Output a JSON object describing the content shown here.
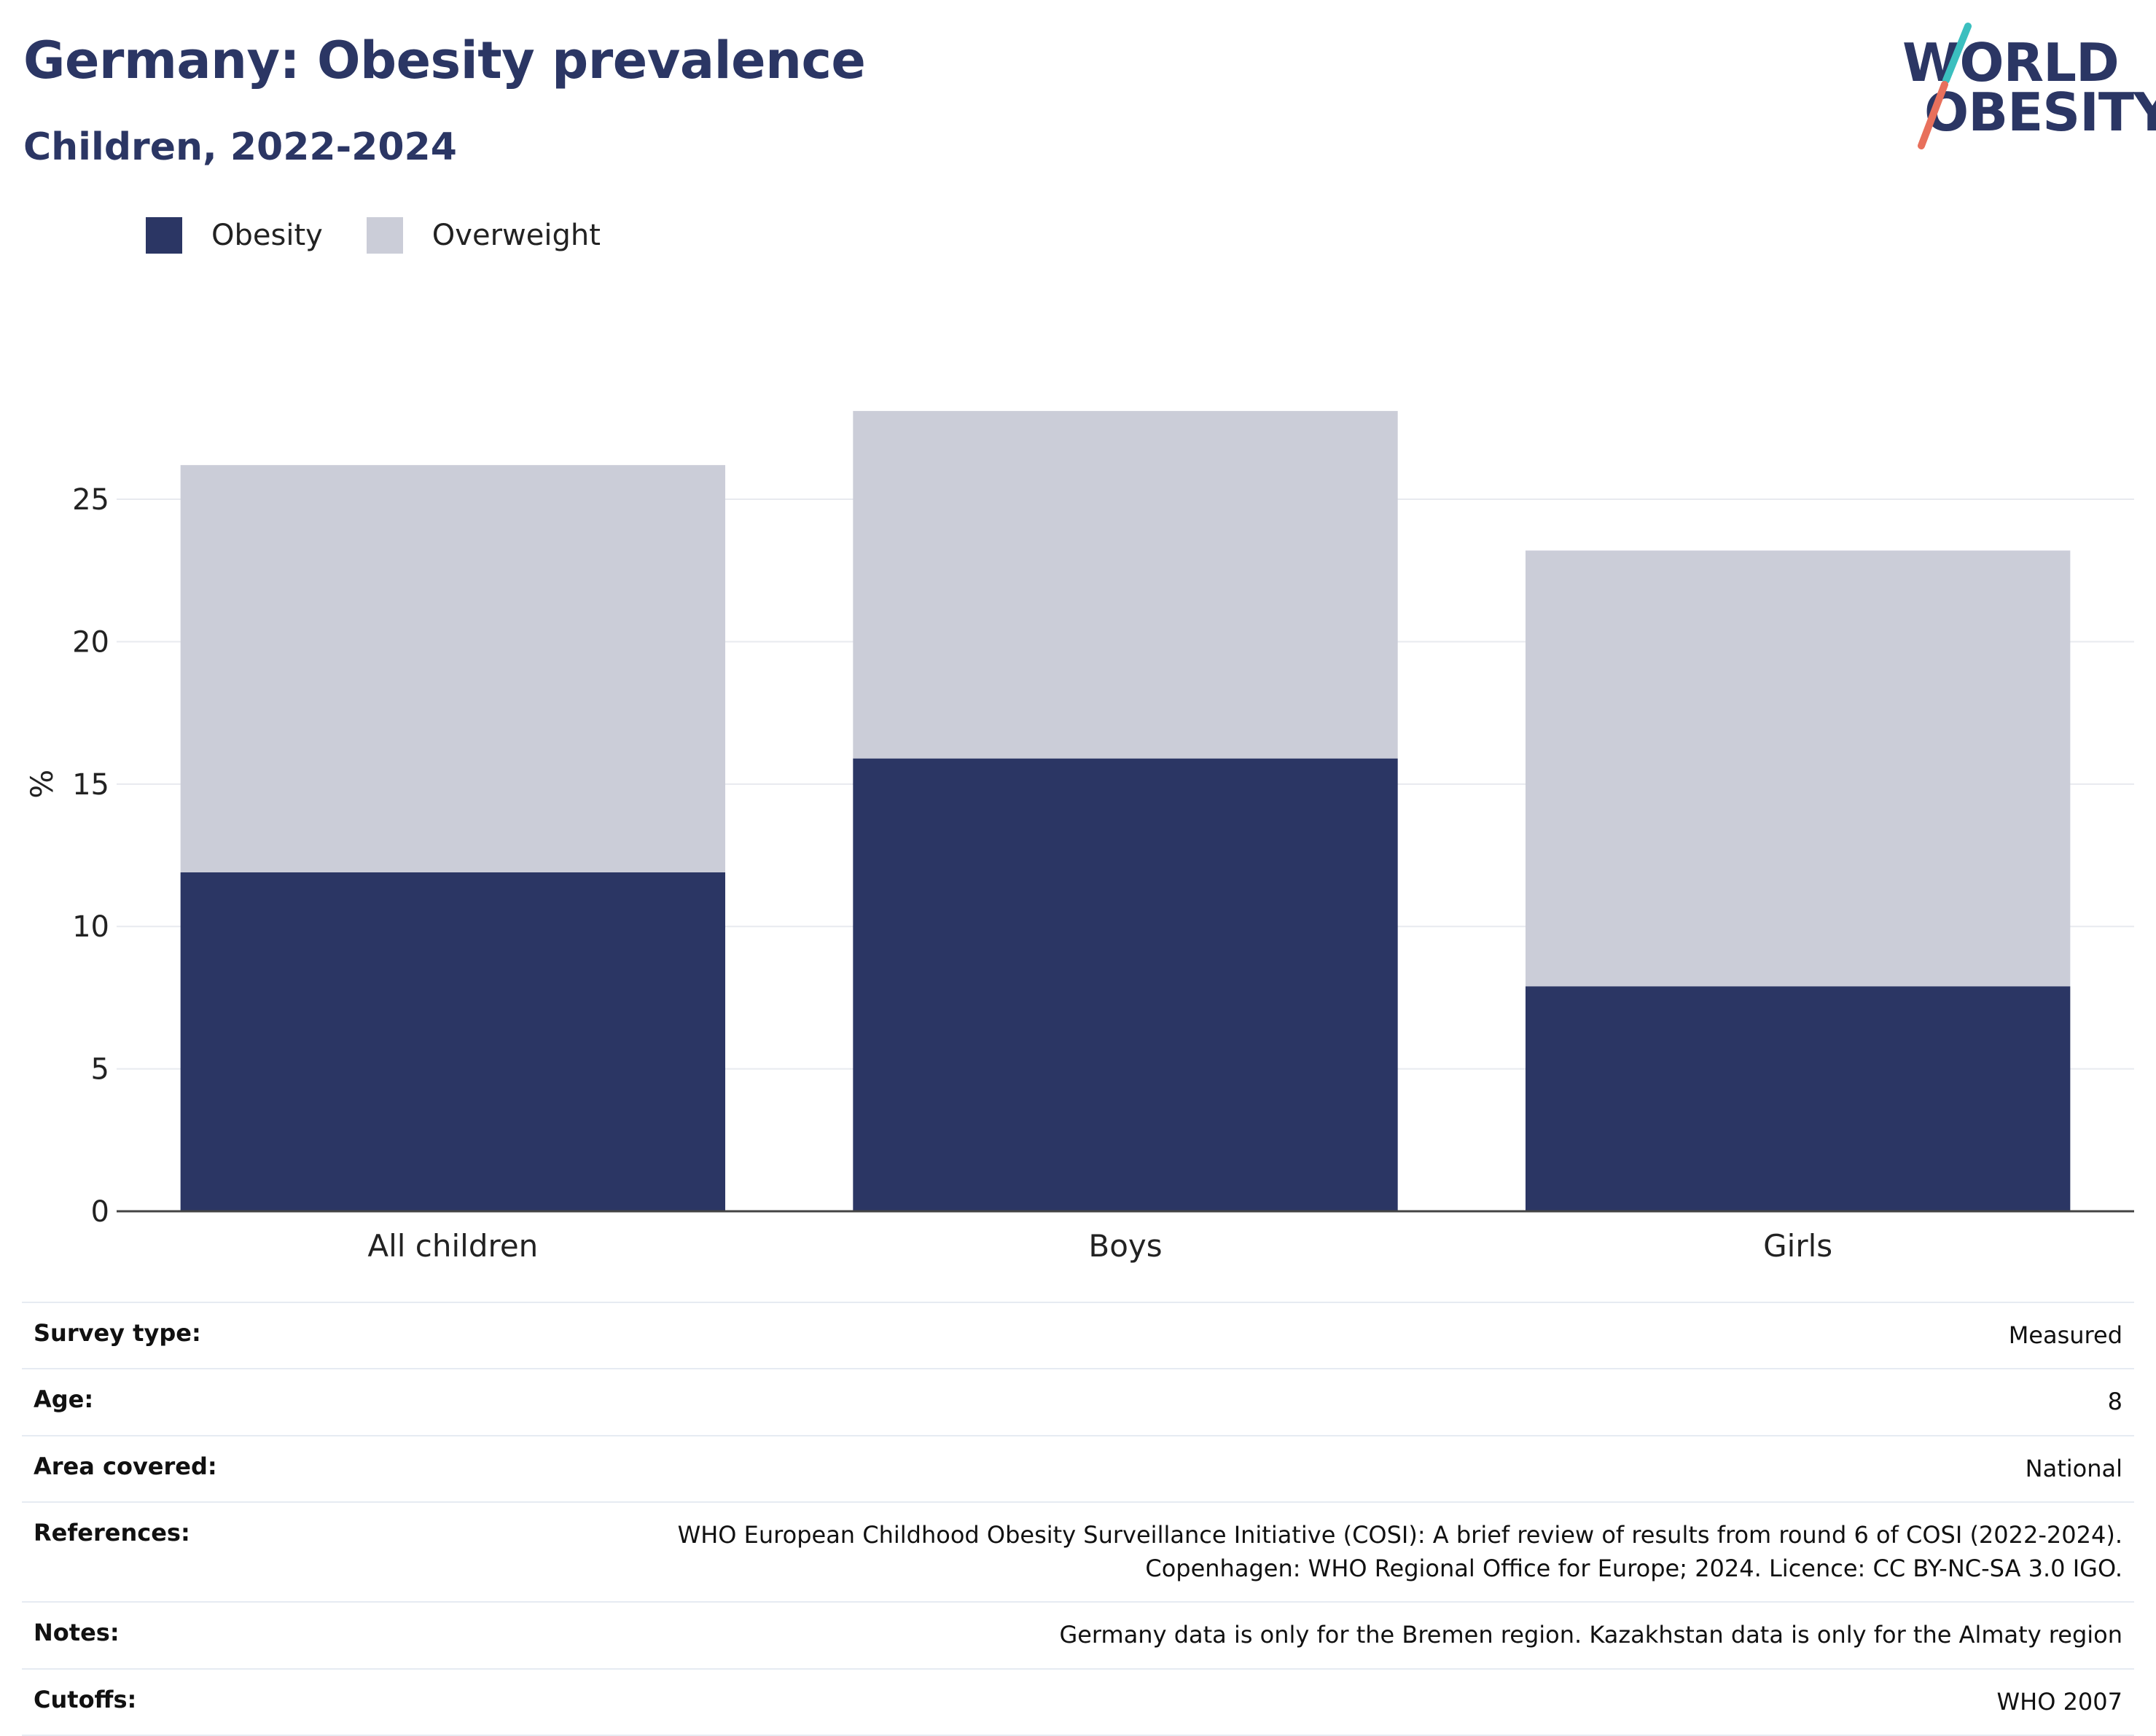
{
  "header": {
    "title": "Germany: Obesity prevalence",
    "subtitle": "Children, 2022-2024"
  },
  "logo": {
    "line1": "WORLD",
    "line2": "OBESITY",
    "accent_colors": [
      "#3bbfbf",
      "#e8705c"
    ]
  },
  "colors": {
    "obesity": "#2b3664",
    "overweight": "#cbcdd8",
    "text": "#2b3664"
  },
  "chart_data": {
    "type": "bar",
    "stacked": true,
    "categories": [
      "All children",
      "Boys",
      "Girls"
    ],
    "series": [
      {
        "name": "Obesity",
        "values": [
          11.9,
          15.9,
          7.9
        ]
      },
      {
        "name": "Overweight",
        "values": [
          14.3,
          12.2,
          15.3
        ]
      }
    ],
    "ylabel": "%",
    "xlabel": "",
    "ylim": [
      0,
      28.2
    ],
    "yticks": [
      0,
      5,
      10,
      15,
      20,
      25
    ],
    "grid": true,
    "legend_position": "top-left"
  },
  "info": [
    {
      "label": "Survey type:",
      "value": "Measured"
    },
    {
      "label": "Age:",
      "value": "8"
    },
    {
      "label": "Area covered:",
      "value": "National"
    },
    {
      "label": "References:",
      "value": "WHO European Childhood Obesity Surveillance Initiative (COSI): A brief review of results from round 6 of COSI (2022-2024).",
      "value2": "Copenhagen: WHO Regional Office for Europe; 2024. Licence: CC BY-NC-SA 3.0 IGO."
    },
    {
      "label": "Notes:",
      "value": "Germany data is only for the Bremen region. Kazakhstan data is only for the Almaty region"
    },
    {
      "label": "Cutoffs:",
      "value": "WHO 2007"
    }
  ]
}
